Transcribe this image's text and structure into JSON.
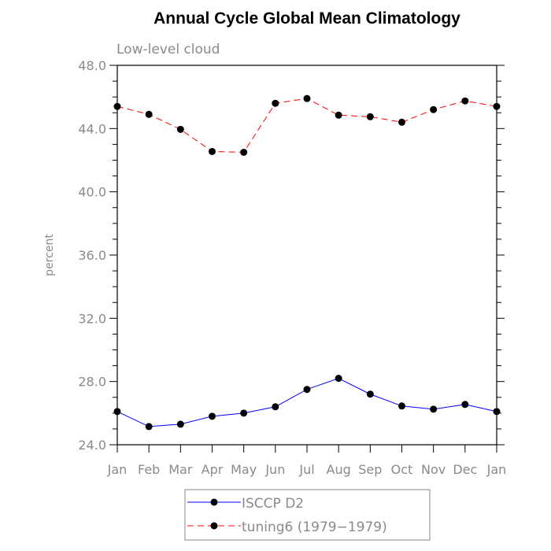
{
  "chart_data": {
    "type": "line",
    "title": "Annual Cycle Global Mean Climatology",
    "subtitle": "Low-level cloud",
    "xlabel": "",
    "ylabel": "percent",
    "categories": [
      "Jan",
      "Feb",
      "Mar",
      "Apr",
      "May",
      "Jun",
      "Jul",
      "Aug",
      "Sep",
      "Oct",
      "Nov",
      "Dec",
      "Jan"
    ],
    "ylim": [
      24.0,
      48.0
    ],
    "yticks": [
      "24.0",
      "28.0",
      "32.0",
      "36.0",
      "40.0",
      "44.0",
      "48.0"
    ],
    "grid": false,
    "legend_position": "bottom-center",
    "series": [
      {
        "name": "ISCCP D2",
        "color": "#0000ff",
        "style": "solid",
        "values": [
          26.1,
          25.15,
          25.3,
          25.8,
          26.0,
          26.4,
          27.5,
          28.2,
          27.2,
          26.45,
          26.25,
          26.55,
          26.1
        ]
      },
      {
        "name": "tuning6 (1979−1979)",
        "color": "#ff0000",
        "style": "dashed",
        "values": [
          45.4,
          44.9,
          43.95,
          42.55,
          42.5,
          45.6,
          45.9,
          44.85,
          44.75,
          44.4,
          45.2,
          45.75,
          45.4
        ]
      }
    ]
  }
}
